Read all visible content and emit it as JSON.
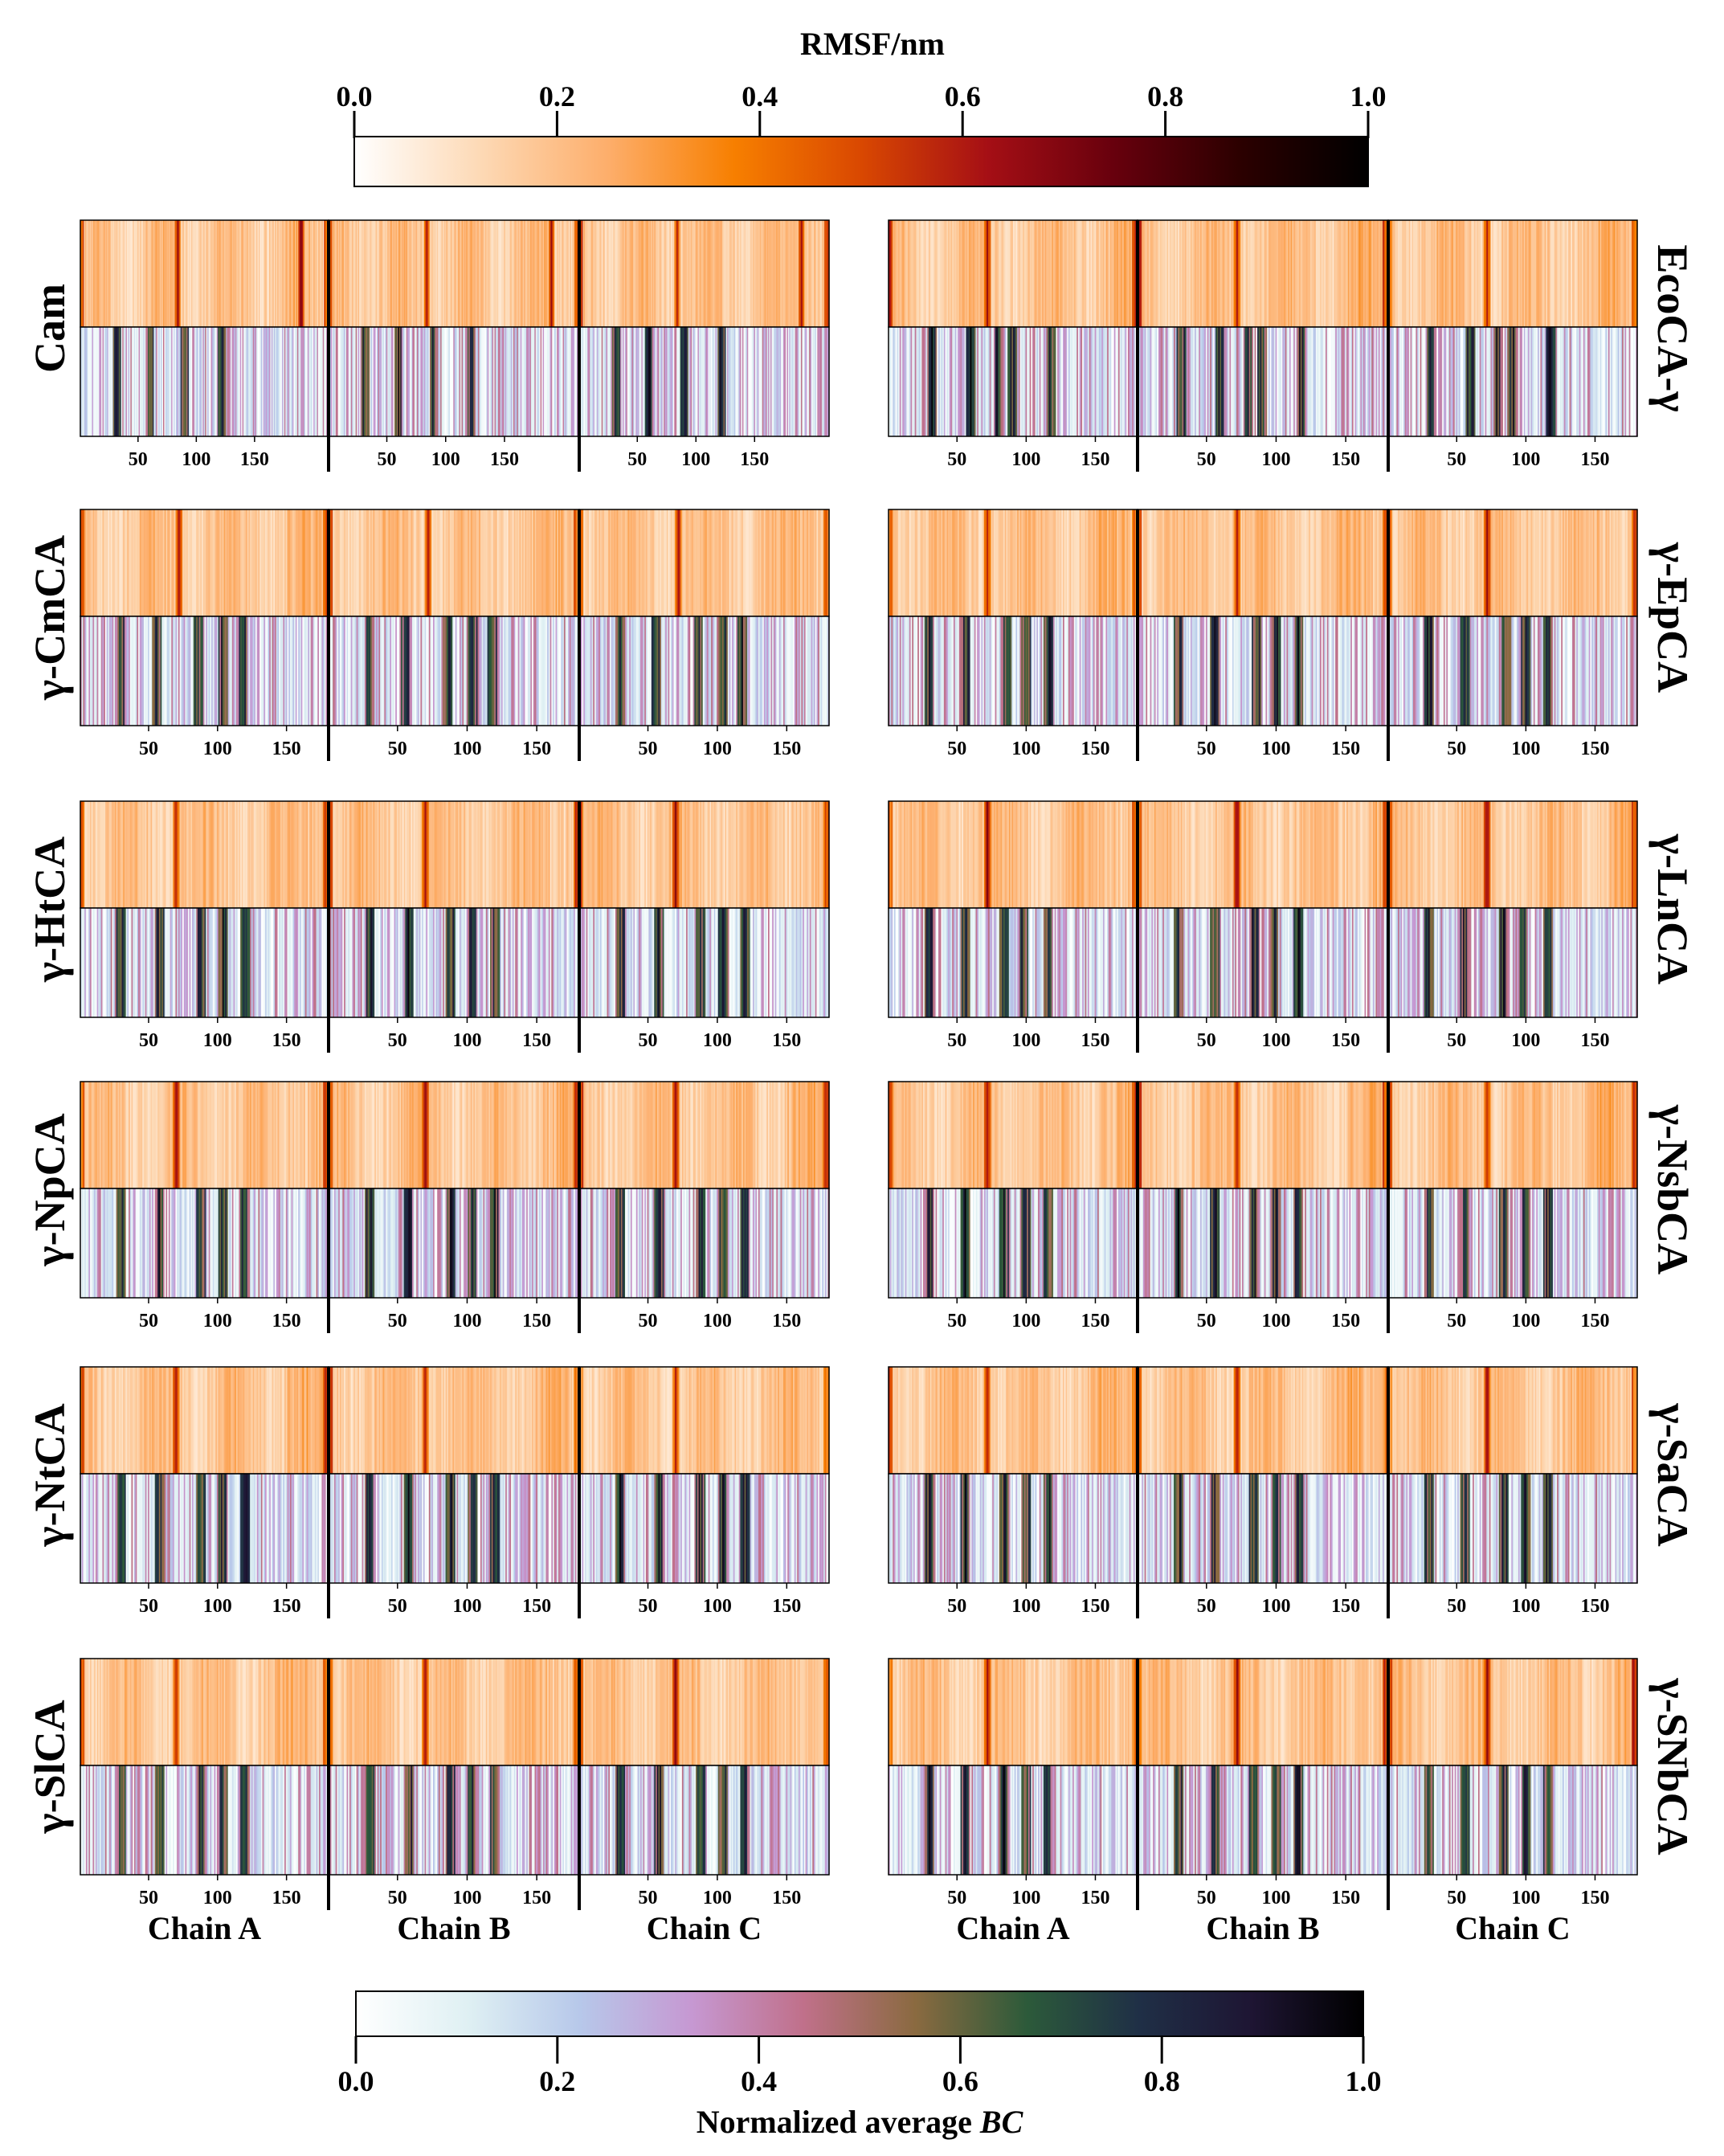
{
  "chart_data": {
    "type": "heatmap",
    "colorbars": {
      "rmsf": {
        "title": "RMSF/nm",
        "range": [
          0,
          1
        ],
        "ticks": [
          "0.0",
          "0.2",
          "0.4",
          "0.6",
          "0.8",
          "1.0"
        ],
        "colormap": [
          "#ffffff",
          "#fdd9b5",
          "#fdae6b",
          "#f77f00",
          "#d94801",
          "#a50f15",
          "#67000d",
          "#2b0000",
          "#000000"
        ]
      },
      "bc": {
        "title_prefix": "Normalized average ",
        "title_italic": "BC",
        "range": [
          0,
          1
        ],
        "ticks": [
          "0.0",
          "0.2",
          "0.4",
          "0.6",
          "0.8",
          "1.0"
        ],
        "colormap": [
          "#ffffff",
          "#dff0f3",
          "#b7c8ea",
          "#c698d2",
          "#c0708a",
          "#8a6a40",
          "#2c5a3a",
          "#1f2f46",
          "#1e1533",
          "#000000"
        ]
      }
    },
    "chain_labels": [
      "Chain A",
      "Chain B",
      "Chain C"
    ],
    "residue_ticks": [
      "50",
      "100",
      "150"
    ],
    "proteins": [
      {
        "name": "Cam",
        "column": "left",
        "row": 0,
        "residues": 213,
        "tick_values": [
          50,
          100,
          150
        ],
        "rmsf_peaks": [
          84,
          190
        ],
        "bc_hubs": [
          32,
          60,
          90,
          122
        ]
      },
      {
        "name": "EcoCA-γ",
        "column": "right",
        "row": 0,
        "residues": 180,
        "tick_values": [
          50,
          100,
          150
        ],
        "rmsf_peaks": [
          72
        ],
        "bc_hubs": [
          32,
          60,
          80,
          90,
          118
        ]
      },
      {
        "name": "γ-CmCA",
        "column": "left",
        "row": 1,
        "residues": 180,
        "tick_values": [
          50,
          100,
          150
        ],
        "rmsf_peaks": [
          72
        ],
        "bc_hubs": [
          30,
          56,
          86,
          104,
          118
        ]
      },
      {
        "name": "γ-EpCA",
        "column": "right",
        "row": 1,
        "residues": 180,
        "tick_values": [
          50,
          100,
          150
        ],
        "rmsf_peaks": [
          72
        ],
        "bc_hubs": [
          30,
          56,
          86,
          100,
          116
        ]
      },
      {
        "name": "γ-HtCA",
        "column": "left",
        "row": 2,
        "residues": 180,
        "tick_values": [
          50,
          100,
          150
        ],
        "rmsf_peaks": [
          70
        ],
        "bc_hubs": [
          30,
          58,
          88,
          104,
          120
        ]
      },
      {
        "name": "γ-LnCA",
        "column": "right",
        "row": 2,
        "residues": 180,
        "tick_values": [
          50,
          100,
          150
        ],
        "rmsf_peaks": [
          72
        ],
        "bc_hubs": [
          30,
          56,
          84,
          98,
          116
        ]
      },
      {
        "name": "γ-NpCA",
        "column": "left",
        "row": 3,
        "residues": 180,
        "tick_values": [
          50,
          100,
          150
        ],
        "rmsf_peaks": [
          70
        ],
        "bc_hubs": [
          30,
          58,
          88,
          104,
          120
        ]
      },
      {
        "name": "γ-NsbCA",
        "column": "right",
        "row": 3,
        "residues": 180,
        "tick_values": [
          50,
          100,
          150
        ],
        "rmsf_peaks": [
          72
        ],
        "bc_hubs": [
          30,
          56,
          84,
          100,
          116
        ]
      },
      {
        "name": "γ-NtCA",
        "column": "left",
        "row": 4,
        "residues": 180,
        "tick_values": [
          50,
          100,
          150
        ],
        "rmsf_peaks": [
          70
        ],
        "bc_hubs": [
          30,
          58,
          88,
          104,
          120
        ]
      },
      {
        "name": "γ-SaCA",
        "column": "right",
        "row": 4,
        "residues": 180,
        "tick_values": [
          50,
          100,
          150
        ],
        "rmsf_peaks": [
          72
        ],
        "bc_hubs": [
          30,
          56,
          84,
          100,
          116
        ]
      },
      {
        "name": "γ-SlCA",
        "column": "left",
        "row": 5,
        "residues": 180,
        "tick_values": [
          50,
          100,
          150
        ],
        "rmsf_peaks": [
          70
        ],
        "bc_hubs": [
          30,
          58,
          88,
          104,
          120
        ]
      },
      {
        "name": "γ-SNbCA",
        "column": "right",
        "row": 5,
        "residues": 180,
        "tick_values": [
          50,
          100,
          150
        ],
        "rmsf_peaks": [
          72
        ],
        "bc_hubs": [
          30,
          56,
          84,
          100,
          116
        ]
      }
    ]
  }
}
